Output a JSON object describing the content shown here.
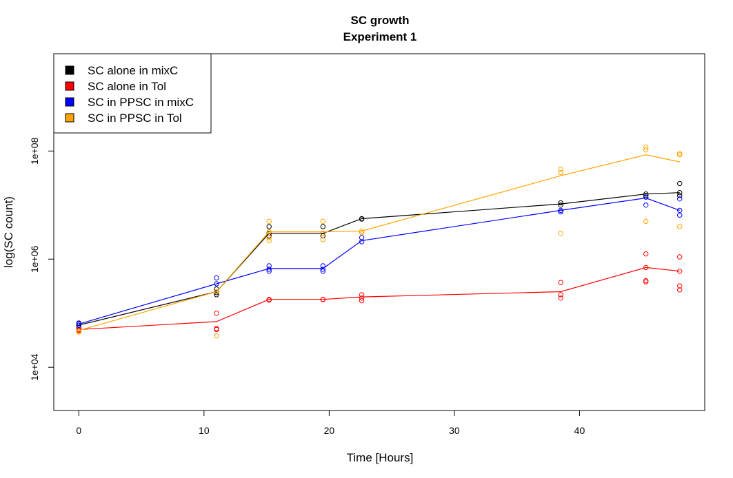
{
  "chart_data": {
    "type": "scatter",
    "title": "SC growth",
    "subtitle": "Experiment 1",
    "xlabel": "Time [Hours]",
    "ylabel": "log(SC count)",
    "xlim": [
      -2,
      50
    ],
    "ylim_log10": [
      3.2,
      9.8
    ],
    "log_y": true,
    "grid": false,
    "legend_position": "top-left",
    "x_ticks": [
      {
        "value": 0,
        "label": "0"
      },
      {
        "value": 10,
        "label": "10"
      },
      {
        "value": 20,
        "label": "20"
      },
      {
        "value": 30,
        "label": "30"
      },
      {
        "value": 40,
        "label": "40"
      }
    ],
    "y_ticks": [
      {
        "value": 10000,
        "label": "1e+04"
      },
      {
        "value": 1000000,
        "label": "1e+06"
      },
      {
        "value": 100000000,
        "label": "1e+08"
      }
    ],
    "series": [
      {
        "name": "SC alone in mixC",
        "color": "#000000",
        "line": [
          [
            0,
            60000
          ],
          [
            11,
            250000
          ],
          [
            15.2,
            3000000
          ],
          [
            19.5,
            3000000
          ],
          [
            22.6,
            5600000
          ],
          [
            38.5,
            10500000
          ],
          [
            45.3,
            16000000
          ],
          [
            48,
            17000000
          ]
        ],
        "points": [
          [
            0,
            55000
          ],
          [
            0,
            60000
          ],
          [
            0,
            64000
          ],
          [
            11,
            280000
          ],
          [
            11,
            240000
          ],
          [
            11,
            220000
          ],
          [
            15.2,
            4000000
          ],
          [
            15.2,
            3000000
          ],
          [
            15.2,
            2700000
          ],
          [
            19.5,
            4000000
          ],
          [
            19.5,
            3000000
          ],
          [
            19.5,
            2700000
          ],
          [
            22.6,
            5600000
          ],
          [
            22.6,
            5500000
          ],
          [
            38.5,
            11000000
          ],
          [
            38.5,
            10000000
          ],
          [
            45.3,
            16000000
          ],
          [
            45.3,
            15000000
          ],
          [
            48,
            25000000
          ],
          [
            48,
            17000000
          ],
          [
            48,
            15000000
          ]
        ]
      },
      {
        "name": "SC alone in Tol",
        "color": "#ff0000",
        "line": [
          [
            0,
            50000
          ],
          [
            11,
            70000
          ],
          [
            15.2,
            180000
          ],
          [
            19.5,
            180000
          ],
          [
            22.6,
            200000
          ],
          [
            38.5,
            250000
          ],
          [
            45.3,
            700000
          ],
          [
            48,
            600000
          ]
        ],
        "points": [
          [
            0,
            50000
          ],
          [
            0,
            48000
          ],
          [
            11,
            100000
          ],
          [
            11,
            52000
          ],
          [
            11,
            50000
          ],
          [
            15.2,
            180000
          ],
          [
            15.2,
            175000
          ],
          [
            19.5,
            180000
          ],
          [
            19.5,
            178000
          ],
          [
            22.6,
            220000
          ],
          [
            22.6,
            190000
          ],
          [
            22.6,
            170000
          ],
          [
            38.5,
            370000
          ],
          [
            38.5,
            220000
          ],
          [
            38.5,
            190000
          ],
          [
            45.3,
            1250000
          ],
          [
            45.3,
            700000
          ],
          [
            45.3,
            400000
          ],
          [
            45.3,
            380000
          ],
          [
            48,
            1100000
          ],
          [
            48,
            600000
          ],
          [
            48,
            320000
          ],
          [
            48,
            270000
          ]
        ]
      },
      {
        "name": "SC in PPSC in mixC",
        "color": "#0000ff",
        "line": [
          [
            0,
            63000
          ],
          [
            11,
            350000
          ],
          [
            15.2,
            670000
          ],
          [
            19.5,
            670000
          ],
          [
            22.6,
            2200000
          ],
          [
            38.5,
            8000000
          ],
          [
            45.3,
            13500000
          ],
          [
            48,
            8000000
          ]
        ],
        "points": [
          [
            0,
            60000
          ],
          [
            0,
            66000
          ],
          [
            11,
            450000
          ],
          [
            11,
            350000
          ],
          [
            15.2,
            750000
          ],
          [
            15.2,
            650000
          ],
          [
            15.2,
            600000
          ],
          [
            19.5,
            750000
          ],
          [
            19.5,
            650000
          ],
          [
            19.5,
            600000
          ],
          [
            22.6,
            2500000
          ],
          [
            22.6,
            2100000
          ],
          [
            38.5,
            8000000
          ],
          [
            38.5,
            7500000
          ],
          [
            45.3,
            14000000
          ],
          [
            45.3,
            10000000
          ],
          [
            48,
            13000000
          ],
          [
            48,
            8000000
          ],
          [
            48,
            6500000
          ]
        ]
      },
      {
        "name": "SC in PPSC in Tol",
        "color": "#ffa500",
        "line": [
          [
            0,
            48000
          ],
          [
            11,
            250000
          ],
          [
            15.2,
            3200000
          ],
          [
            19.5,
            3200000
          ],
          [
            22.6,
            3300000
          ],
          [
            38.5,
            35000000
          ],
          [
            45.3,
            85000000
          ],
          [
            48,
            63000000
          ]
        ],
        "points": [
          [
            0,
            46000
          ],
          [
            0,
            45000
          ],
          [
            11,
            250000
          ],
          [
            11,
            38000
          ],
          [
            15.2,
            5000000
          ],
          [
            15.2,
            3200000
          ],
          [
            15.2,
            2500000
          ],
          [
            15.2,
            2200000
          ],
          [
            19.5,
            5000000
          ],
          [
            19.5,
            3000000
          ],
          [
            19.5,
            2300000
          ],
          [
            22.6,
            3300000
          ],
          [
            22.6,
            3100000
          ],
          [
            38.5,
            46000000
          ],
          [
            38.5,
            40000000
          ],
          [
            38.5,
            3000000
          ],
          [
            45.3,
            118000000
          ],
          [
            45.3,
            105000000
          ],
          [
            45.3,
            5000000
          ],
          [
            48,
            90000000
          ],
          [
            48,
            85000000
          ],
          [
            48,
            4000000
          ]
        ]
      }
    ]
  }
}
